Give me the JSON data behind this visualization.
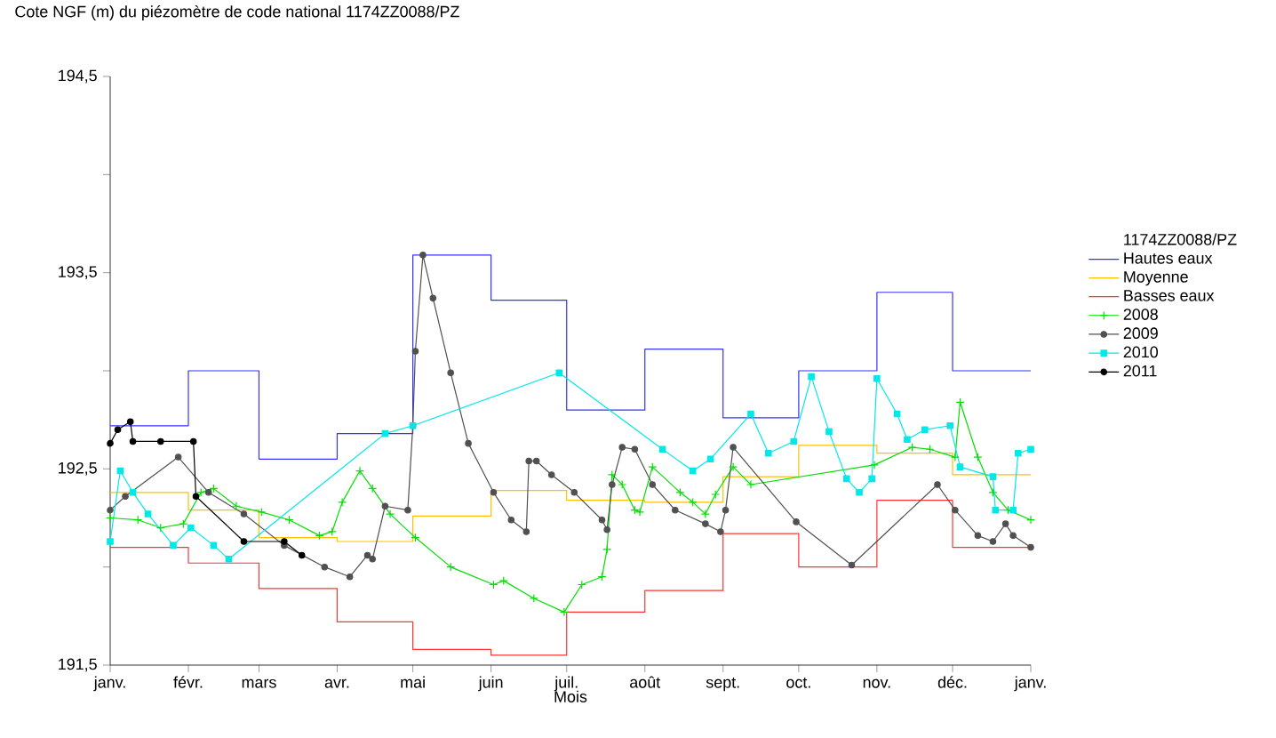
{
  "chart_data": {
    "type": "line",
    "title": "Cote NGF (m) du piézomètre de code national 1174ZZ0088/PZ",
    "xlabel": "Mois",
    "legend_title": "1174ZZ0088/PZ",
    "legend": "right",
    "xlim": [
      "2011-01-01",
      "2012-01-01"
    ],
    "xticks": [
      {
        "value": "2011-01-01",
        "label": "janv."
      },
      {
        "value": "2011-02-01",
        "label": "févr."
      },
      {
        "value": "2011-03-01",
        "label": "mars"
      },
      {
        "value": "2011-04-01",
        "label": "avr."
      },
      {
        "value": "2011-05-01",
        "label": "mai"
      },
      {
        "value": "2011-06-01",
        "label": "juin"
      },
      {
        "value": "2011-07-01",
        "label": "juil."
      },
      {
        "value": "2011-08-01",
        "label": "août"
      },
      {
        "value": "2011-09-01",
        "label": "sept."
      },
      {
        "value": "2011-10-01",
        "label": "oct."
      },
      {
        "value": "2011-11-01",
        "label": "nov."
      },
      {
        "value": "2011-12-01",
        "label": "déc."
      },
      {
        "value": "2012-01-01",
        "label": "janv."
      }
    ],
    "ylim": [
      191.5,
      194.5
    ],
    "yticks": [
      {
        "value": 191.5,
        "label": "191,5"
      },
      {
        "value": 192,
        "label": null
      },
      {
        "value": 192.5,
        "label": "192,5"
      },
      {
        "value": 193,
        "label": null
      },
      {
        "value": 193.5,
        "label": "193,5"
      },
      {
        "value": 194,
        "label": null
      },
      {
        "value": 194.5,
        "label": "194,5"
      }
    ],
    "series": [
      {
        "name": "Hautes eaux",
        "type": "step",
        "color": "#3333ff",
        "x": [
          "2011-01-01",
          "2011-02-01",
          "2011-03-01",
          "2011-04-01",
          "2011-05-01",
          "2011-06-01",
          "2011-07-01",
          "2011-08-01",
          "2011-09-01",
          "2011-10-01",
          "2011-11-01",
          "2011-12-01",
          "2012-01-01"
        ],
        "values": [
          192.72,
          193.0,
          192.55,
          192.68,
          193.59,
          193.36,
          192.8,
          193.11,
          192.76,
          193.0,
          193.4,
          193.0,
          193.0
        ]
      },
      {
        "name": "Moyenne",
        "type": "step",
        "color": "#ffc000",
        "x": [
          "2011-01-01",
          "2011-02-01",
          "2011-03-01",
          "2011-04-01",
          "2011-05-01",
          "2011-06-01",
          "2011-07-01",
          "2011-08-01",
          "2011-09-01",
          "2011-10-01",
          "2011-11-01",
          "2011-12-01",
          "2012-01-01"
        ],
        "values": [
          192.38,
          192.29,
          192.15,
          192.13,
          192.26,
          192.39,
          192.34,
          192.33,
          192.46,
          192.62,
          192.58,
          192.47,
          192.47
        ]
      },
      {
        "name": "Basses eaux",
        "type": "step",
        "color": "#ff3333",
        "x": [
          "2011-01-01",
          "2011-02-01",
          "2011-03-01",
          "2011-04-01",
          "2011-05-01",
          "2011-06-01",
          "2011-07-01",
          "2011-08-01",
          "2011-09-01",
          "2011-10-01",
          "2011-11-01",
          "2011-12-01",
          "2012-01-01"
        ],
        "values": [
          192.1,
          192.02,
          191.89,
          191.72,
          191.58,
          191.55,
          191.77,
          191.88,
          192.17,
          192.0,
          192.34,
          192.1,
          192.1
        ]
      },
      {
        "name": "2008",
        "marker": "cross",
        "color": "#00e000",
        "x": [
          "2011-01-01",
          "2011-01-12",
          "2011-01-21",
          "2011-01-30",
          "2011-02-06",
          "2011-02-11",
          "2011-02-20",
          "2011-03-02",
          "2011-03-13",
          "2011-03-25",
          "2011-03-30",
          "2011-04-03",
          "2011-04-10",
          "2011-04-15",
          "2011-04-22",
          "2011-05-02",
          "2011-05-16",
          "2011-06-02",
          "2011-06-06",
          "2011-06-18",
          "2011-06-30",
          "2011-07-07",
          "2011-07-15",
          "2011-07-17",
          "2011-07-19",
          "2011-07-23",
          "2011-07-28",
          "2011-07-30",
          "2011-08-04",
          "2011-08-15",
          "2011-08-20",
          "2011-08-25",
          "2011-08-29",
          "2011-09-05",
          "2011-09-12",
          "2011-10-31",
          "2011-11-15",
          "2011-11-22",
          "2011-12-02",
          "2011-12-04",
          "2011-12-11",
          "2011-12-17",
          "2011-12-23",
          "2012-01-01"
        ],
        "values": [
          192.25,
          192.24,
          192.2,
          192.22,
          192.38,
          192.4,
          192.31,
          192.28,
          192.24,
          192.16,
          192.18,
          192.33,
          192.49,
          192.4,
          192.27,
          192.15,
          192.0,
          191.91,
          191.93,
          191.84,
          191.77,
          191.91,
          191.95,
          192.09,
          192.47,
          192.42,
          192.29,
          192.28,
          192.51,
          192.38,
          192.33,
          192.27,
          192.37,
          192.51,
          192.42,
          192.52,
          192.61,
          192.6,
          192.56,
          192.84,
          192.56,
          192.38,
          192.29,
          192.24
        ]
      },
      {
        "name": "2009",
        "marker": "circle",
        "color": "#505050",
        "x": [
          "2011-01-01",
          "2011-01-07",
          "2011-01-28",
          "2011-02-09",
          "2011-02-23",
          "2011-03-11",
          "2011-03-27",
          "2011-04-06",
          "2011-04-13",
          "2011-04-15",
          "2011-04-20",
          "2011-04-29",
          "2011-05-01",
          "2011-05-02",
          "2011-05-05",
          "2011-05-09",
          "2011-05-16",
          "2011-05-23",
          "2011-06-02",
          "2011-06-09",
          "2011-06-15",
          "2011-06-16",
          "2011-06-19",
          "2011-06-25",
          "2011-07-04",
          "2011-07-15",
          "2011-07-17",
          "2011-07-19",
          "2011-07-23",
          "2011-07-28",
          "2011-08-04",
          "2011-08-13",
          "2011-08-25",
          "2011-08-31",
          "2011-09-02",
          "2011-09-05",
          "2011-09-30",
          "2011-10-22",
          "2011-11-25",
          "2011-12-02",
          "2011-12-11",
          "2011-12-17",
          "2011-12-22",
          "2011-12-25",
          "2012-01-01"
        ],
        "values": [
          192.29,
          192.36,
          192.56,
          192.38,
          192.27,
          192.11,
          192.0,
          191.95,
          192.06,
          192.04,
          192.31,
          192.29,
          192.72,
          193.1,
          193.59,
          193.37,
          192.99,
          192.63,
          192.38,
          192.24,
          192.18,
          192.54,
          192.54,
          192.47,
          192.38,
          192.24,
          192.19,
          192.42,
          192.61,
          192.6,
          192.42,
          192.29,
          192.22,
          192.18,
          192.29,
          192.61,
          192.23,
          192.01,
          192.42,
          192.29,
          192.16,
          192.13,
          192.22,
          192.16,
          192.1
        ]
      },
      {
        "name": "2010",
        "marker": "square",
        "color": "#00e8e8",
        "x": [
          "2011-01-01",
          "2011-01-05",
          "2011-01-10",
          "2011-01-16",
          "2011-01-26",
          "2011-02-02",
          "2011-02-11",
          "2011-02-17",
          "2011-04-20",
          "2011-05-01",
          "2011-06-28",
          "2011-08-08",
          "2011-08-20",
          "2011-08-27",
          "2011-09-12",
          "2011-09-19",
          "2011-09-29",
          "2011-10-06",
          "2011-10-13",
          "2011-10-20",
          "2011-10-25",
          "2011-10-30",
          "2011-11-01",
          "2011-11-09",
          "2011-11-13",
          "2011-11-20",
          "2011-11-30",
          "2011-12-04",
          "2011-12-17",
          "2011-12-18",
          "2011-12-25",
          "2011-12-27",
          "2012-01-01"
        ],
        "values": [
          192.13,
          192.49,
          192.38,
          192.27,
          192.11,
          192.2,
          192.11,
          192.04,
          192.68,
          192.72,
          192.99,
          192.6,
          192.49,
          192.55,
          192.78,
          192.58,
          192.64,
          192.97,
          192.69,
          192.45,
          192.38,
          192.45,
          192.96,
          192.78,
          192.65,
          192.7,
          192.72,
          192.51,
          192.46,
          192.29,
          192.29,
          192.58,
          192.6
        ]
      },
      {
        "name": "2011",
        "marker": "circle",
        "color": "#000000",
        "x": [
          "2011-01-01",
          "2011-01-04",
          "2011-01-09",
          "2011-01-10",
          "2011-01-21",
          "2011-02-03",
          "2011-02-04",
          "2011-02-23",
          "2011-03-11",
          "2011-03-18"
        ],
        "values": [
          192.63,
          192.7,
          192.74,
          192.64,
          192.64,
          192.64,
          192.36,
          192.13,
          192.13,
          192.06
        ]
      }
    ]
  }
}
